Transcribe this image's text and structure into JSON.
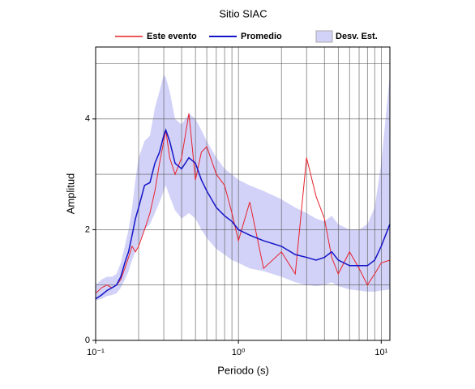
{
  "chart_data": {
    "type": "line",
    "title": "Sitio SIAC",
    "x_label": "Periodo (s)",
    "y_label": "Amplitud",
    "x_log": true,
    "grid": true,
    "x": [
      0.1,
      0.11,
      0.12,
      0.13,
      0.14,
      0.15,
      0.16,
      0.17,
      0.18,
      0.19,
      0.2,
      0.22,
      0.24,
      0.26,
      0.28,
      0.3,
      0.31,
      0.33,
      0.36,
      0.4,
      0.45,
      0.5,
      0.55,
      0.6,
      0.7,
      0.8,
      0.9,
      1.0,
      1.2,
      1.5,
      2,
      2.5,
      3,
      3.5,
      4,
      4.5,
      5,
      6,
      7,
      8,
      9,
      10,
      11.5
    ],
    "series": [
      {
        "name": "Este evento",
        "color": "#e8202a",
        "values": [
          0.85,
          0.95,
          1.0,
          0.95,
          1.0,
          1.1,
          1.3,
          1.5,
          1.7,
          1.6,
          1.7,
          2.0,
          2.3,
          2.7,
          3.2,
          3.6,
          3.8,
          3.3,
          3.0,
          3.3,
          4.1,
          2.9,
          3.4,
          3.5,
          3.0,
          2.8,
          2.3,
          1.8,
          2.5,
          1.3,
          1.6,
          1.2,
          3.3,
          2.6,
          2.2,
          1.5,
          1.2,
          1.6,
          1.3,
          1.0,
          1.2,
          1.4,
          1.45
        ]
      },
      {
        "name": "Promedio",
        "color": "#1414c8",
        "values": [
          0.75,
          0.82,
          0.9,
          0.95,
          1.0,
          1.15,
          1.4,
          1.6,
          1.9,
          2.2,
          2.4,
          2.8,
          2.85,
          3.2,
          3.4,
          3.7,
          3.8,
          3.6,
          3.2,
          3.1,
          3.3,
          3.2,
          2.9,
          2.7,
          2.4,
          2.25,
          2.15,
          2.0,
          1.9,
          1.8,
          1.7,
          1.55,
          1.5,
          1.45,
          1.5,
          1.6,
          1.45,
          1.35,
          1.35,
          1.35,
          1.45,
          1.7,
          2.1
        ]
      }
    ],
    "band": {
      "name": "Desv. Est.",
      "color": "#d2d2f8",
      "lower": [
        0.72,
        0.75,
        0.8,
        0.82,
        0.85,
        0.95,
        1.1,
        1.25,
        1.45,
        1.6,
        1.75,
        2.0,
        2.1,
        2.3,
        2.5,
        2.7,
        2.8,
        2.6,
        2.35,
        2.2,
        2.3,
        2.2,
        2.0,
        1.85,
        1.65,
        1.55,
        1.45,
        1.4,
        1.3,
        1.25,
        1.15,
        1.05,
        1.0,
        0.98,
        1.0,
        1.05,
        0.98,
        0.92,
        0.9,
        0.88,
        0.88,
        0.9,
        0.92
      ],
      "upper": [
        1.0,
        1.1,
        1.15,
        1.15,
        1.2,
        1.4,
        1.7,
        2.0,
        2.4,
        2.9,
        3.3,
        3.6,
        3.7,
        4.2,
        4.5,
        4.8,
        4.75,
        4.5,
        4.0,
        3.9,
        4.1,
        4.0,
        3.8,
        3.6,
        3.3,
        3.1,
        3.0,
        2.9,
        2.8,
        2.7,
        2.55,
        2.4,
        2.3,
        2.2,
        2.15,
        2.25,
        2.1,
        2.0,
        2.0,
        2.1,
        2.4,
        3.2,
        4.8
      ]
    },
    "xlim": [
      0.1,
      11.5
    ],
    "ylim": [
      0,
      5.3
    ],
    "xticks": [
      {
        "value": 0.1,
        "label": "10⁻¹"
      },
      {
        "value": 1,
        "label": "10⁰"
      },
      {
        "value": 10,
        "label": "10¹"
      }
    ],
    "yticks": [
      0,
      2,
      4
    ],
    "xgrid": [
      0.2,
      0.3,
      0.4,
      0.5,
      0.6,
      0.7,
      0.8,
      0.9,
      1,
      2,
      3,
      4,
      5,
      6,
      7,
      8,
      9,
      10
    ],
    "ygrid": [
      1,
      2,
      3,
      4,
      5
    ]
  }
}
